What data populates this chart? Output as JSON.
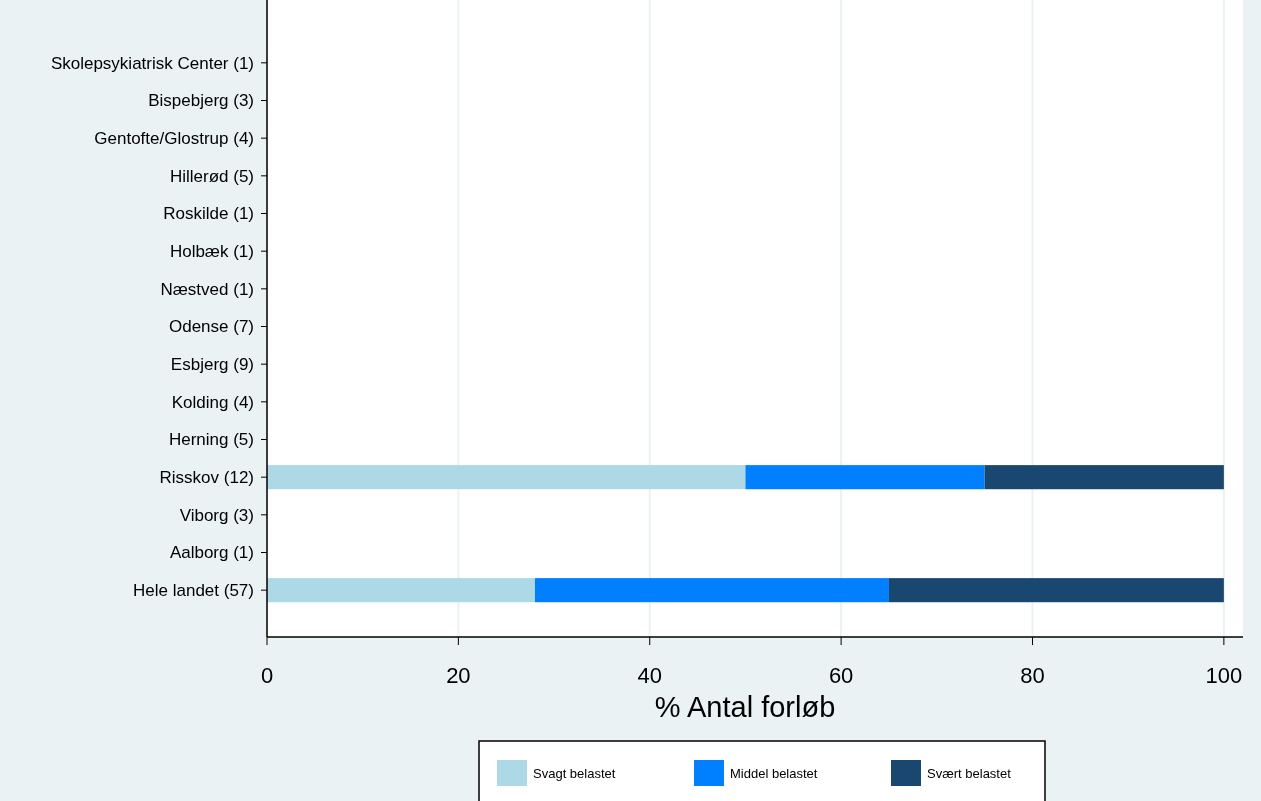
{
  "chart_data": {
    "type": "bar",
    "orientation": "horizontal",
    "stacked": true,
    "xlabel": "% Antal forløb",
    "categories": [
      "Skolepsykiatrisk Center (1)",
      "Bispebjerg (3)",
      "Gentofte/Glostrup (4)",
      "Hillerød (5)",
      "Roskilde (1)",
      "Holbæk (1)",
      "Næstved (1)",
      "Odense (7)",
      "Esbjerg (9)",
      "Kolding (4)",
      "Herning (5)",
      "Risskov (12)",
      "Viborg (3)",
      "Aalborg (1)",
      "Hele landet (57)"
    ],
    "series": [
      {
        "name": "Svagt belastet",
        "color": "#add8e6",
        "values": [
          null,
          null,
          null,
          null,
          null,
          null,
          null,
          null,
          null,
          null,
          null,
          50,
          null,
          null,
          28
        ]
      },
      {
        "name": "Middel belastet",
        "color": "#0080ff",
        "values": [
          null,
          null,
          null,
          null,
          null,
          null,
          null,
          null,
          null,
          null,
          null,
          25,
          null,
          null,
          37
        ]
      },
      {
        "name": "Svært belastet",
        "color": "#1a476f",
        "values": [
          null,
          null,
          null,
          null,
          null,
          null,
          null,
          null,
          null,
          null,
          null,
          25,
          null,
          null,
          35
        ]
      }
    ],
    "xlim": [
      0,
      102
    ],
    "xticks": [
      0,
      20,
      40,
      60,
      80,
      100
    ],
    "grid": "x",
    "legend": "bottom"
  }
}
